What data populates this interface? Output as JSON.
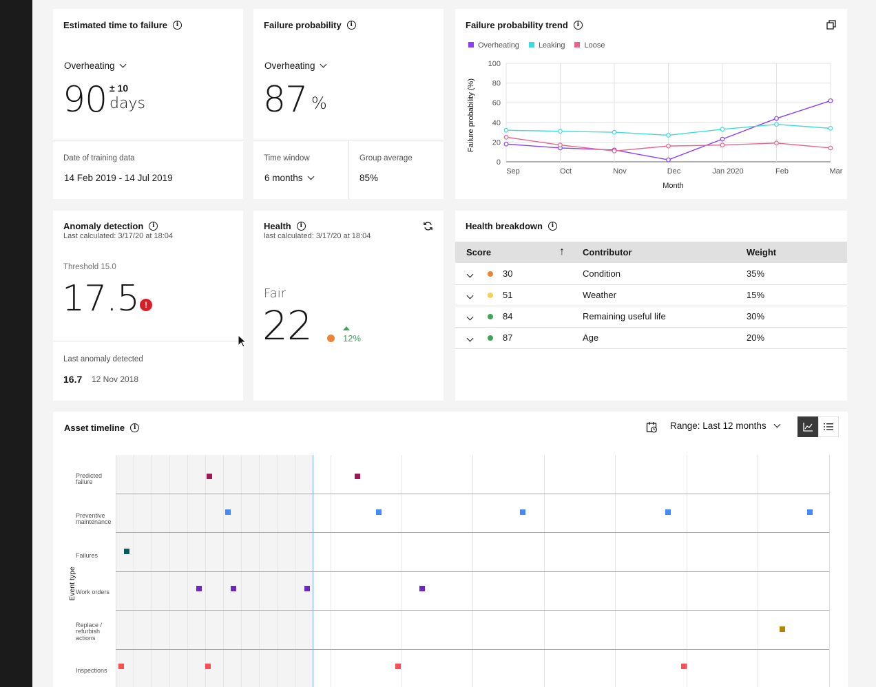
{
  "colors": {
    "overheating": "#8a3ffc",
    "leaking": "#3ddbd9",
    "loose": "#e5668a",
    "orange": "#eb8338",
    "yellow": "#f1d35a",
    "green": "#3aa657",
    "red": "#da1e28"
  },
  "ettf": {
    "title": "Estimated time to failure",
    "dropdown": "Overheating",
    "value": "90",
    "tolerance": "± 10",
    "unit": "days",
    "training_label": "Date of training data",
    "training_value": "14 Feb 2019 - 14 Jul 2019"
  },
  "fp": {
    "title": "Failure probability",
    "dropdown": "Overheating",
    "value": "87",
    "unit": "%",
    "window_label": "Time window",
    "window_value": "6 months",
    "group_label": "Group average",
    "group_value": "85%"
  },
  "trend": {
    "title": "Failure probability trend",
    "chart_data": {
      "type": "line",
      "categories": [
        "Sep",
        "Oct",
        "Nov",
        "Dec",
        "Jan 2020",
        "Feb",
        "Mar"
      ],
      "xlabel": "Month",
      "ylabel": "Failure probability (%)",
      "ylim": [
        0,
        100
      ],
      "yticks": [
        "0",
        "20",
        "40",
        "60",
        "80",
        "100"
      ],
      "grid": true,
      "legend_position": "top-left",
      "series": [
        {
          "name": "Overheating",
          "values": [
            18,
            14,
            12,
            2,
            23,
            44,
            62
          ]
        },
        {
          "name": "Leaking",
          "values": [
            32,
            31,
            30,
            27,
            33,
            38,
            34
          ]
        },
        {
          "name": "Loose",
          "values": [
            25,
            17,
            11,
            16,
            17,
            19,
            14
          ]
        }
      ]
    }
  },
  "anomaly": {
    "title": "Anomaly detection",
    "calc": "Last calculated: 3/17/20 at 18:04",
    "threshold": "Threshold 15.0",
    "value": "17.5",
    "alert": "!",
    "last_label": "Last anomaly detected",
    "last_value": "16.7",
    "last_date": "12 Nov 2018"
  },
  "health": {
    "title": "Health",
    "calc": "last calculated: 3/17/20 at 18:04",
    "status": "Fair",
    "value": "22",
    "change": "12%"
  },
  "breakdown": {
    "title": "Health breakdown",
    "headers": {
      "score": "Score",
      "contributor": "Contributor",
      "weight": "Weight"
    },
    "rows": [
      {
        "score": "30",
        "color": "orange",
        "contributor": "Condition",
        "weight": "35%"
      },
      {
        "score": "51",
        "color": "yellow",
        "contributor": "Weather",
        "weight": "15%"
      },
      {
        "score": "84",
        "color": "green",
        "contributor": "Remaining useful life",
        "weight": "30%"
      },
      {
        "score": "87",
        "color": "green",
        "contributor": "Age",
        "weight": "20%"
      }
    ]
  },
  "timeline": {
    "title": "Asset timeline",
    "range": "Range: Last 12 months",
    "yaxis_label": "Event type",
    "event_types": [
      {
        "name": "Predicted failure",
        "lines": [
          "Predicted",
          "failure"
        ],
        "color": "#9f1853"
      },
      {
        "name": "Preventive maintenance",
        "lines": [
          "Preventive",
          "maintenance"
        ],
        "color": "#4589ff"
      },
      {
        "name": "Failures",
        "lines": [
          "Failures"
        ],
        "color": "#005d5d"
      },
      {
        "name": "Work orders",
        "lines": [
          "Work orders"
        ],
        "color": "#6929c4"
      },
      {
        "name": "Replace / refurbish actions",
        "lines": [
          "Replace /",
          "refurbish",
          "actions"
        ],
        "color": "#b28600"
      },
      {
        "name": "Inspections",
        "lines": [
          "Inspections"
        ],
        "color": "#fa4d56"
      }
    ]
  }
}
